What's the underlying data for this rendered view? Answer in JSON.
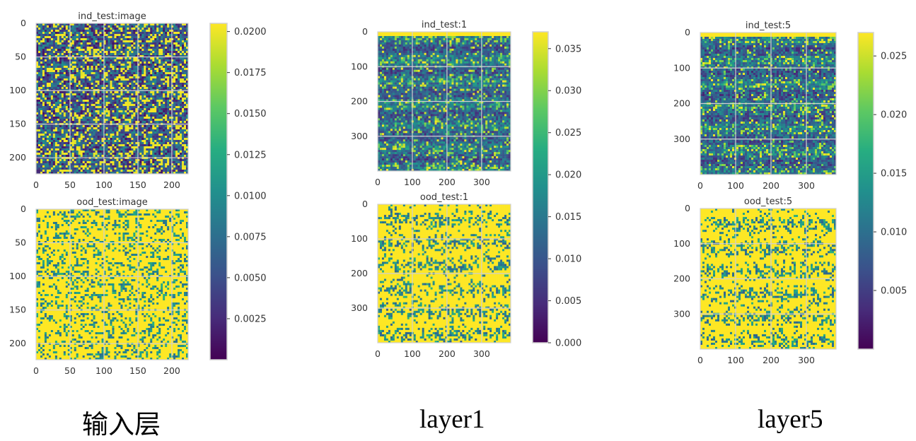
{
  "captions": {
    "input_layer": "输入层",
    "layer1": "layer1",
    "layer5": "layer5"
  },
  "colormap": "viridis",
  "colors": {
    "grid": "#d0d0d0",
    "frame": "#d0d0d0",
    "text": "#333333"
  },
  "chart_data": [
    {
      "type": "heatmap",
      "id": "ind_image",
      "title": "ind_test:image",
      "xlim": [
        0,
        224
      ],
      "ylim": [
        224,
        0
      ],
      "xticks": [
        0,
        50,
        100,
        150,
        200
      ],
      "yticks": [
        0,
        50,
        100,
        150,
        200
      ],
      "grid": true,
      "clim": [
        0,
        0.0205
      ],
      "pattern": "sparse_blobs"
    },
    {
      "type": "heatmap",
      "id": "ood_image",
      "title": "ood_test:image",
      "xlim": [
        0,
        224
      ],
      "ylim": [
        224,
        0
      ],
      "xticks": [
        0,
        50,
        100,
        150,
        200
      ],
      "yticks": [
        0,
        50,
        100,
        150,
        200
      ],
      "grid": true,
      "clim": [
        0,
        0.0205
      ],
      "pattern": "dense_blobs"
    },
    {
      "type": "heatmap",
      "id": "ind_layer1",
      "title": "ind_test:1",
      "xlim": [
        0,
        384
      ],
      "ylim": [
        400,
        0
      ],
      "xticks": [
        0,
        100,
        200,
        300
      ],
      "yticks": [
        0,
        100,
        200,
        300
      ],
      "grid": true,
      "clim": [
        0,
        0.037
      ],
      "pattern": "sparse_bands"
    },
    {
      "type": "heatmap",
      "id": "ood_layer1",
      "title": "ood_test:1",
      "xlim": [
        0,
        384
      ],
      "ylim": [
        400,
        0
      ],
      "xticks": [
        0,
        100,
        200,
        300
      ],
      "yticks": [
        0,
        100,
        200,
        300
      ],
      "grid": true,
      "clim": [
        0,
        0.037
      ],
      "pattern": "dense_bands"
    },
    {
      "type": "heatmap",
      "id": "ind_layer5",
      "title": "ind_test:5",
      "xlim": [
        0,
        384
      ],
      "ylim": [
        400,
        0
      ],
      "xticks": [
        0,
        100,
        200,
        300
      ],
      "yticks": [
        0,
        100,
        200,
        300
      ],
      "grid": true,
      "clim": [
        0,
        0.027
      ],
      "pattern": "sparse_bands"
    },
    {
      "type": "heatmap",
      "id": "ood_layer5",
      "title": "ood_test:5",
      "xlim": [
        0,
        384
      ],
      "ylim": [
        400,
        0
      ],
      "xticks": [
        0,
        100,
        200,
        300
      ],
      "yticks": [
        0,
        100,
        200,
        300
      ],
      "grid": true,
      "clim": [
        0,
        0.027
      ],
      "pattern": "dense_bands"
    }
  ],
  "colorbars": [
    {
      "id": "cbar_input",
      "range": [
        0,
        0.0205
      ],
      "ticks": [
        0.0025,
        0.005,
        0.0075,
        0.01,
        0.0125,
        0.015,
        0.0175,
        0.02
      ],
      "labels": [
        "0.0025",
        "0.0050",
        "0.0075",
        "0.0100",
        "0.0125",
        "0.0150",
        "0.0175",
        "0.0200"
      ]
    },
    {
      "id": "cbar_layer1",
      "range": [
        0,
        0.037
      ],
      "ticks": [
        0,
        0.005,
        0.01,
        0.015,
        0.02,
        0.025,
        0.03,
        0.035
      ],
      "labels": [
        "0.000",
        "0.005",
        "0.010",
        "0.015",
        "0.020",
        "0.025",
        "0.030",
        "0.035"
      ]
    },
    {
      "id": "cbar_layer5",
      "range": [
        0,
        0.027
      ],
      "ticks": [
        0.005,
        0.01,
        0.015,
        0.02,
        0.025
      ],
      "labels": [
        "0.005",
        "0.010",
        "0.015",
        "0.020",
        "0.025"
      ]
    }
  ]
}
